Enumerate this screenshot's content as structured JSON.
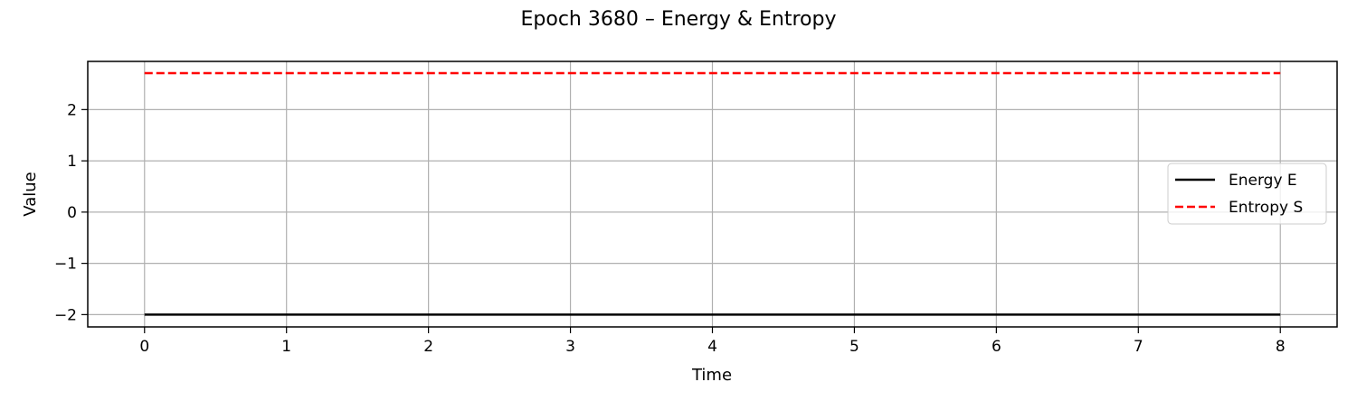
{
  "chart_data": {
    "type": "line",
    "title": "Epoch 3680 – Energy & Entropy",
    "xlabel": "Time",
    "ylabel": "Value",
    "xlim": [
      -0.4,
      8.4
    ],
    "ylim": [
      -2.24,
      2.94
    ],
    "xticks": [
      0,
      1,
      2,
      3,
      4,
      5,
      6,
      7,
      8
    ],
    "xtick_labels": [
      "0",
      "1",
      "2",
      "3",
      "4",
      "5",
      "6",
      "7",
      "8"
    ],
    "yticks": [
      -2,
      -1,
      0,
      1,
      2
    ],
    "ytick_labels": [
      "−2",
      "−1",
      "0",
      "1",
      "2"
    ],
    "grid": true,
    "legend_position": "center-right",
    "series": [
      {
        "name": "Energy E",
        "color": "#000000",
        "dash": "solid",
        "x": [
          0,
          1,
          2,
          3,
          4,
          5,
          6,
          7,
          8
        ],
        "y": [
          -2,
          -2,
          -2,
          -2,
          -2,
          -2,
          -2,
          -2,
          -2
        ]
      },
      {
        "name": "Entropy S",
        "color": "#ff0000",
        "dash": "dashed",
        "x": [
          0,
          1,
          2,
          3,
          4,
          5,
          6,
          7,
          8
        ],
        "y": [
          2.71,
          2.71,
          2.71,
          2.71,
          2.71,
          2.71,
          2.71,
          2.71,
          2.71
        ]
      }
    ]
  }
}
